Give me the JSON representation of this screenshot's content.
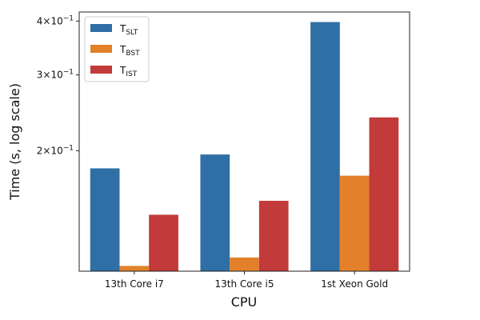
{
  "chart_data": {
    "type": "bar",
    "scale": "log",
    "xlabel": "CPU",
    "ylabel": "Time (s, log scale)",
    "categories": [
      "13th Core i7",
      "13th Core i5",
      "1st Xeon Gold"
    ],
    "ylim": [
      0.105,
      0.42
    ],
    "yticks": [
      {
        "value": 0.2,
        "mantissa": "2",
        "label": "2 × 10⁻¹"
      },
      {
        "value": 0.3,
        "mantissa": "3",
        "label": "3 × 10⁻¹"
      },
      {
        "value": 0.4,
        "mantissa": "4",
        "label": "4 × 10⁻¹"
      }
    ],
    "legend_position": "top-left",
    "grid": false,
    "series": [
      {
        "name": "T_SLT",
        "base": "T",
        "sub": "SLT",
        "color": "#2f6fa5",
        "values": [
          0.182,
          0.196,
          0.398
        ]
      },
      {
        "name": "T_BST",
        "base": "T",
        "sub": "BST",
        "color": "#e2812a",
        "values": [
          0.108,
          0.113,
          0.175
        ]
      },
      {
        "name": "T_IST",
        "base": "T",
        "sub": "IST",
        "color": "#c23a3a",
        "values": [
          0.142,
          0.153,
          0.239
        ]
      }
    ]
  }
}
